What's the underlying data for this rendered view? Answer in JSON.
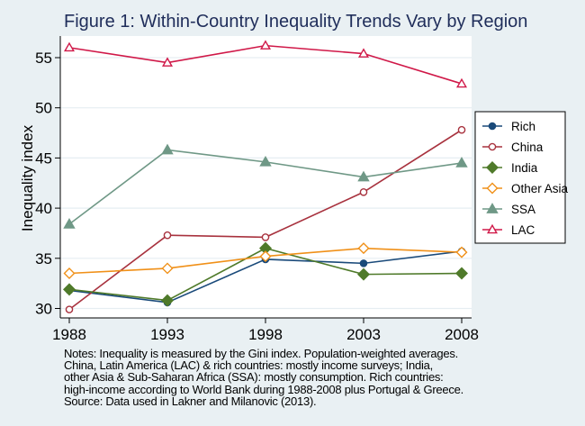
{
  "chart_data": {
    "type": "line",
    "title": "Figure 1: Within-Country Inequality Trends Vary by Region",
    "xlabel": "",
    "ylabel": "Inequality index",
    "x": [
      1988,
      1993,
      1998,
      2003,
      2008
    ],
    "x_tick_labels": [
      "1988",
      "1993",
      "1998",
      "2003",
      "2008"
    ],
    "y_ticks": [
      30,
      35,
      40,
      45,
      50,
      55
    ],
    "y_tick_labels": [
      "30",
      "35",
      "40",
      "45",
      "50",
      "55"
    ],
    "ylim": [
      29,
      57.2
    ],
    "xlim": [
      1987.5,
      2008.5
    ],
    "grid": true,
    "legend_position": "right",
    "series": [
      {
        "name": "Rich",
        "color": "#1a4a7a",
        "marker": "filled-circle",
        "values": [
          31.8,
          30.6,
          34.9,
          34.5,
          35.7
        ]
      },
      {
        "name": "China",
        "color": "#a8323e",
        "marker": "hollow-circle",
        "values": [
          29.9,
          37.3,
          37.1,
          41.6,
          47.8
        ]
      },
      {
        "name": "India",
        "color": "#4f7a2a",
        "marker": "filled-diamond",
        "values": [
          31.9,
          30.8,
          36.0,
          33.4,
          33.5
        ]
      },
      {
        "name": "Other Asia",
        "color": "#f09018",
        "marker": "hollow-diamond",
        "values": [
          33.5,
          34.0,
          35.2,
          36.0,
          35.6
        ]
      },
      {
        "name": "SSA",
        "color": "#6f9886",
        "marker": "filled-triangle",
        "values": [
          38.4,
          45.8,
          44.6,
          43.1,
          44.5
        ]
      },
      {
        "name": "LAC",
        "color": "#d01848",
        "marker": "hollow-triangle",
        "values": [
          56.0,
          54.5,
          56.2,
          55.4,
          52.4
        ]
      }
    ]
  },
  "notes": [
    "Notes: Inequality is measured by the Gini index. Population-weighted averages.",
    "China, Latin America (LAC) & rich countries: mostly income surveys; India,",
    "other Asia & Sub-Saharan Africa (SSA): mostly consumption. Rich countries:",
    "high-income according to World Bank during 1988-2008 plus Portugal & Greece.",
    "Source: Data used in Lakner and Milanovic (2013)."
  ],
  "colors": {
    "background": "#e9f0f3",
    "plot_background": "#ffffff",
    "title": "#1f2d5a",
    "grid": "#e6eef2"
  }
}
